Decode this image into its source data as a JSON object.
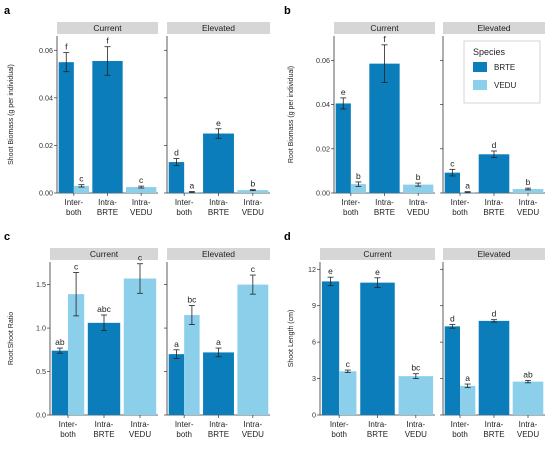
{
  "colors": {
    "BRTE": "#0a7dba",
    "VEDU": "#8ccfea",
    "strip": "#d6d6d6"
  },
  "legend": {
    "title": "Species",
    "items": [
      "BRTE",
      "VEDU"
    ]
  },
  "chart_data": [
    {
      "type": "bar",
      "panel_label": "a",
      "ylabel": "Shoot Biomass (g per individual)",
      "ylim": [
        0,
        0.066
      ],
      "yticks": [
        0.0,
        0.02,
        0.04,
        0.06
      ],
      "ytick_labels": [
        "0.00",
        "0.02",
        "0.04",
        "0.06"
      ],
      "facets": [
        "Current",
        "Elevated"
      ],
      "categories": [
        "Inter-\nboth",
        "Intra-\nBRTE",
        "Intra-\nVEDU"
      ],
      "bars": [
        {
          "facet": "Current",
          "cat": 0,
          "species": "BRTE",
          "value": 0.055,
          "err": 0.004,
          "letter": "f"
        },
        {
          "facet": "Current",
          "cat": 0,
          "species": "VEDU",
          "value": 0.003,
          "err": 0.0005,
          "letter": "c"
        },
        {
          "facet": "Current",
          "cat": 1,
          "species": "BRTE",
          "value": 0.0555,
          "err": 0.006,
          "letter": "f"
        },
        {
          "facet": "Current",
          "cat": 2,
          "species": "VEDU",
          "value": 0.0025,
          "err": 0.0004,
          "letter": "c"
        },
        {
          "facet": "Elevated",
          "cat": 0,
          "species": "BRTE",
          "value": 0.013,
          "err": 0.0015,
          "letter": "d"
        },
        {
          "facet": "Elevated",
          "cat": 0,
          "species": "VEDU",
          "value": 0.0004,
          "err": 0.0002,
          "letter": "a"
        },
        {
          "facet": "Elevated",
          "cat": 1,
          "species": "BRTE",
          "value": 0.025,
          "err": 0.002,
          "letter": "e"
        },
        {
          "facet": "Elevated",
          "cat": 2,
          "species": "VEDU",
          "value": 0.0012,
          "err": 0.0002,
          "letter": "b"
        }
      ]
    },
    {
      "type": "bar",
      "panel_label": "b",
      "ylabel": "Root Biomass (g per individual)",
      "ylim": [
        0,
        0.071
      ],
      "yticks": [
        0.0,
        0.02,
        0.04,
        0.06
      ],
      "ytick_labels": [
        "0.00",
        "0.02",
        "0.04",
        "0.06"
      ],
      "facets": [
        "Current",
        "Elevated"
      ],
      "categories": [
        "Inter-\nboth",
        "Intra-\nBRTE",
        "Intra-\nVEDU"
      ],
      "bars": [
        {
          "facet": "Current",
          "cat": 0,
          "species": "BRTE",
          "value": 0.0405,
          "err": 0.0025,
          "letter": "e"
        },
        {
          "facet": "Current",
          "cat": 0,
          "species": "VEDU",
          "value": 0.004,
          "err": 0.001,
          "letter": "b"
        },
        {
          "facet": "Current",
          "cat": 1,
          "species": "BRTE",
          "value": 0.0585,
          "err": 0.0085,
          "letter": "f"
        },
        {
          "facet": "Current",
          "cat": 2,
          "species": "VEDU",
          "value": 0.0038,
          "err": 0.0007,
          "letter": "b"
        },
        {
          "facet": "Elevated",
          "cat": 0,
          "species": "BRTE",
          "value": 0.0092,
          "err": 0.0015,
          "letter": "c"
        },
        {
          "facet": "Elevated",
          "cat": 0,
          "species": "VEDU",
          "value": 0.0004,
          "err": 0.0002,
          "letter": "a"
        },
        {
          "facet": "Elevated",
          "cat": 1,
          "species": "BRTE",
          "value": 0.0175,
          "err": 0.0015,
          "letter": "d"
        },
        {
          "facet": "Elevated",
          "cat": 2,
          "species": "VEDU",
          "value": 0.0018,
          "err": 0.0004,
          "letter": "b"
        }
      ]
    },
    {
      "type": "bar",
      "panel_label": "c",
      "ylabel": "Root:Shoot Ratio",
      "ylim": [
        0,
        1.76
      ],
      "yticks": [
        0.0,
        0.5,
        1.0,
        1.5
      ],
      "ytick_labels": [
        "0.0",
        "0.5",
        "1.0",
        "1.5"
      ],
      "facets": [
        "Current",
        "Elevated"
      ],
      "categories": [
        "Inter-\nboth",
        "Intra-\nBRTE",
        "Intra-\nVEDU"
      ],
      "bars": [
        {
          "facet": "Current",
          "cat": 0,
          "species": "BRTE",
          "value": 0.74,
          "err": 0.03,
          "letter": "ab"
        },
        {
          "facet": "Current",
          "cat": 0,
          "species": "VEDU",
          "value": 1.39,
          "err": 0.25,
          "letter": "c"
        },
        {
          "facet": "Current",
          "cat": 1,
          "species": "BRTE",
          "value": 1.06,
          "err": 0.09,
          "letter": "abc"
        },
        {
          "facet": "Current",
          "cat": 2,
          "species": "VEDU",
          "value": 1.57,
          "err": 0.17,
          "letter": "c"
        },
        {
          "facet": "Elevated",
          "cat": 0,
          "species": "BRTE",
          "value": 0.7,
          "err": 0.05,
          "letter": "a"
        },
        {
          "facet": "Elevated",
          "cat": 0,
          "species": "VEDU",
          "value": 1.15,
          "err": 0.11,
          "letter": "bc"
        },
        {
          "facet": "Elevated",
          "cat": 1,
          "species": "BRTE",
          "value": 0.72,
          "err": 0.05,
          "letter": "a"
        },
        {
          "facet": "Elevated",
          "cat": 2,
          "species": "VEDU",
          "value": 1.5,
          "err": 0.11,
          "letter": "c"
        }
      ]
    },
    {
      "type": "bar",
      "panel_label": "d",
      "ylabel": "Shoot Length (cm)",
      "ylim": [
        0,
        12.6
      ],
      "yticks": [
        0,
        3,
        6,
        9,
        12
      ],
      "ytick_labels": [
        "0",
        "3",
        "6",
        "9",
        "12"
      ],
      "facets": [
        "Current",
        "Elevated"
      ],
      "categories": [
        "Inter-\nboth",
        "Intra-\nBRTE",
        "Intra-\nVEDU"
      ],
      "bars": [
        {
          "facet": "Current",
          "cat": 0,
          "species": "BRTE",
          "value": 11.0,
          "err": 0.35,
          "letter": "e"
        },
        {
          "facet": "Current",
          "cat": 0,
          "species": "VEDU",
          "value": 3.6,
          "err": 0.1,
          "letter": "c"
        },
        {
          "facet": "Current",
          "cat": 1,
          "species": "BRTE",
          "value": 10.9,
          "err": 0.4,
          "letter": "e"
        },
        {
          "facet": "Current",
          "cat": 2,
          "species": "VEDU",
          "value": 3.2,
          "err": 0.2,
          "letter": "bc"
        },
        {
          "facet": "Elevated",
          "cat": 0,
          "species": "BRTE",
          "value": 7.3,
          "err": 0.15,
          "letter": "d"
        },
        {
          "facet": "Elevated",
          "cat": 0,
          "species": "VEDU",
          "value": 2.4,
          "err": 0.15,
          "letter": "a"
        },
        {
          "facet": "Elevated",
          "cat": 1,
          "species": "BRTE",
          "value": 7.75,
          "err": 0.1,
          "letter": "d"
        },
        {
          "facet": "Elevated",
          "cat": 2,
          "species": "VEDU",
          "value": 2.75,
          "err": 0.1,
          "letter": "ab"
        }
      ]
    }
  ]
}
